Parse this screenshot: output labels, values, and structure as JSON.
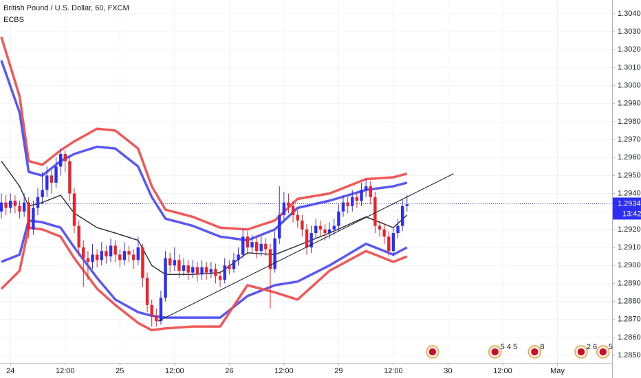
{
  "chart_data": {
    "type": "candlestick",
    "title": "British Pound / U.S. Dollar, 60, FXCM",
    "indicator": "ECBS",
    "up_color": "#2e2ef0",
    "down_color": "#e8242c",
    "candles": [
      [
        1.293,
        1.294,
        1.2926,
        1.2935
      ],
      [
        1.2935,
        1.2939,
        1.2928,
        1.2932
      ],
      [
        1.2932,
        1.294,
        1.2929,
        1.2936
      ],
      [
        1.2936,
        1.2939,
        1.2929,
        1.2933
      ],
      [
        1.2933,
        1.2936,
        1.2926,
        1.293
      ],
      [
        1.293,
        1.294,
        1.2927,
        1.2935
      ],
      [
        1.2935,
        1.2938,
        1.2915,
        1.292
      ],
      [
        1.292,
        1.2936,
        1.2917,
        1.2932
      ],
      [
        1.2932,
        1.2943,
        1.2928,
        1.2938
      ],
      [
        1.2938,
        1.2952,
        1.2934,
        1.2942
      ],
      [
        1.2942,
        1.2955,
        1.2938,
        1.295
      ],
      [
        1.295,
        1.2953,
        1.294,
        1.2946
      ],
      [
        1.2946,
        1.296,
        1.2943,
        1.2955
      ],
      [
        1.2955,
        1.2965,
        1.295,
        1.2962
      ],
      [
        1.2962,
        1.2964,
        1.2952,
        1.2958
      ],
      [
        1.2958,
        1.296,
        1.2936,
        1.294
      ],
      [
        1.294,
        1.2943,
        1.2918,
        1.2922
      ],
      [
        1.2922,
        1.2925,
        1.2905,
        1.291
      ],
      [
        1.291,
        1.2914,
        1.2888,
        1.2904
      ],
      [
        1.2904,
        1.2908,
        1.2892,
        1.2902
      ],
      [
        1.2902,
        1.2912,
        1.2898,
        1.2906
      ],
      [
        1.2906,
        1.2909,
        1.2899,
        1.2903
      ],
      [
        1.2903,
        1.2913,
        1.29,
        1.2908
      ],
      [
        1.2908,
        1.2911,
        1.2901,
        1.2905
      ],
      [
        1.2905,
        1.2915,
        1.2902,
        1.2911
      ],
      [
        1.2911,
        1.2914,
        1.2902,
        1.2906
      ],
      [
        1.2906,
        1.2909,
        1.2899,
        1.2903
      ],
      [
        1.2903,
        1.2913,
        1.29,
        1.2908
      ],
      [
        1.2908,
        1.2911,
        1.2902,
        1.2906
      ],
      [
        1.2906,
        1.2909,
        1.2898,
        1.2903
      ],
      [
        1.2903,
        1.2916,
        1.29,
        1.291
      ],
      [
        1.291,
        1.2912,
        1.2888,
        1.2893
      ],
      [
        1.2893,
        1.2896,
        1.2874,
        1.2878
      ],
      [
        1.2878,
        1.2881,
        1.2866,
        1.2872
      ],
      [
        1.2872,
        1.2876,
        1.2866,
        1.2869
      ],
      [
        1.2869,
        1.2886,
        1.2867,
        1.2882
      ],
      [
        1.2882,
        1.2908,
        1.288,
        1.2904
      ],
      [
        1.2904,
        1.2907,
        1.2896,
        1.29
      ],
      [
        1.29,
        1.291,
        1.2897,
        1.2903
      ],
      [
        1.2903,
        1.2906,
        1.2893,
        1.2897
      ],
      [
        1.2897,
        1.2904,
        1.2894,
        1.29
      ],
      [
        1.29,
        1.2903,
        1.2892,
        1.2896
      ],
      [
        1.2896,
        1.2903,
        1.2893,
        1.2899
      ],
      [
        1.2899,
        1.2902,
        1.2891,
        1.2895
      ],
      [
        1.2895,
        1.2903,
        1.2892,
        1.2899
      ],
      [
        1.2899,
        1.2902,
        1.2892,
        1.2896
      ],
      [
        1.2896,
        1.2902,
        1.2893,
        1.2898
      ],
      [
        1.2898,
        1.2901,
        1.289,
        1.2894
      ],
      [
        1.2894,
        1.2897,
        1.2888,
        1.2892
      ],
      [
        1.2892,
        1.2904,
        1.289,
        1.29
      ],
      [
        1.29,
        1.2903,
        1.2895,
        1.2898
      ],
      [
        1.2898,
        1.2907,
        1.2896,
        1.2903
      ],
      [
        1.2903,
        1.291,
        1.29,
        1.2906
      ],
      [
        1.2906,
        1.292,
        1.2904,
        1.2916
      ],
      [
        1.2916,
        1.2919,
        1.2906,
        1.291
      ],
      [
        1.291,
        1.2917,
        1.2907,
        1.2913
      ],
      [
        1.2913,
        1.2916,
        1.2904,
        1.2908
      ],
      [
        1.2908,
        1.2916,
        1.2905,
        1.2912
      ],
      [
        1.2912,
        1.2915,
        1.2905,
        1.2909
      ],
      [
        1.2909,
        1.2912,
        1.2876,
        1.2898
      ],
      [
        1.2898,
        1.2919,
        1.2896,
        1.2915
      ],
      [
        1.2915,
        1.2944,
        1.2912,
        1.2928
      ],
      [
        1.2928,
        1.2941,
        1.2925,
        1.2935
      ],
      [
        1.2935,
        1.294,
        1.2929,
        1.2933
      ],
      [
        1.2933,
        1.2936,
        1.2924,
        1.2928
      ],
      [
        1.2928,
        1.2931,
        1.2921,
        1.2925
      ],
      [
        1.2925,
        1.2928,
        1.2916,
        1.292
      ],
      [
        1.292,
        1.2923,
        1.2906,
        1.291
      ],
      [
        1.291,
        1.2922,
        1.2907,
        1.2918
      ],
      [
        1.2918,
        1.2926,
        1.2915,
        1.2922
      ],
      [
        1.2922,
        1.2925,
        1.2916,
        1.292
      ],
      [
        1.292,
        1.2923,
        1.2914,
        1.2918
      ],
      [
        1.2918,
        1.2924,
        1.2915,
        1.292
      ],
      [
        1.292,
        1.2926,
        1.2917,
        1.2922
      ],
      [
        1.2922,
        1.2934,
        1.2919,
        1.293
      ],
      [
        1.293,
        1.2939,
        1.2927,
        1.2935
      ],
      [
        1.2935,
        1.2938,
        1.2929,
        1.2933
      ],
      [
        1.2933,
        1.2942,
        1.293,
        1.2938
      ],
      [
        1.2938,
        1.2941,
        1.2932,
        1.2936
      ],
      [
        1.2936,
        1.2946,
        1.2933,
        1.2942
      ],
      [
        1.2942,
        1.2948,
        1.2938,
        1.2944
      ],
      [
        1.2944,
        1.2947,
        1.2934,
        1.2938
      ],
      [
        1.2938,
        1.2941,
        1.2918,
        1.2922
      ],
      [
        1.2922,
        1.2925,
        1.2916,
        1.292
      ],
      [
        1.292,
        1.2923,
        1.2912,
        1.2916
      ],
      [
        1.2916,
        1.2919,
        1.2905,
        1.2908
      ],
      [
        1.2908,
        1.2921,
        1.2905,
        1.2918
      ],
      [
        1.2918,
        1.2926,
        1.2915,
        1.2922
      ],
      [
        1.2922,
        1.2937,
        1.2919,
        1.2933
      ],
      [
        1.2933,
        1.2939,
        1.293,
        1.2934
      ]
    ],
    "overlay_x": [
      0,
      4,
      6,
      9,
      13,
      16,
      21,
      25,
      30,
      33,
      36,
      42,
      48,
      54,
      60,
      65,
      72,
      80,
      86,
      89
    ],
    "overlays": [
      {
        "color": "#f05050",
        "values": [
          1.3027,
          1.2994,
          1.2958,
          1.2956,
          1.2964,
          1.2969,
          1.2976,
          1.2975,
          1.2965,
          1.2944,
          1.2931,
          1.2927,
          1.2921,
          1.292,
          1.2925,
          1.2937,
          1.294,
          1.2948,
          1.2949,
          1.2951
        ]
      },
      {
        "color": "#5050f0",
        "values": [
          1.3014,
          1.2985,
          1.2952,
          1.295,
          1.2958,
          1.2962,
          1.2966,
          1.2965,
          1.2955,
          1.2938,
          1.2926,
          1.2922,
          1.2916,
          1.2914,
          1.292,
          1.2932,
          1.2936,
          1.2942,
          1.2944,
          1.2946
        ]
      },
      {
        "color": "#333333",
        "values": [
          1.2958,
          1.2944,
          1.2933,
          1.2935,
          1.2939,
          1.2929,
          1.2921,
          1.2918,
          1.2914,
          1.29,
          1.2895,
          1.2895,
          1.2896,
          1.2907,
          1.2906,
          1.2911,
          1.2918,
          1.2927,
          1.2921,
          1.2928
        ]
      },
      {
        "color": "#5050f0",
        "values": [
          1.2902,
          1.2906,
          1.2925,
          1.2924,
          1.2921,
          1.291,
          1.2893,
          1.2881,
          1.2874,
          1.2872,
          1.2871,
          1.2871,
          1.2871,
          1.2883,
          1.2889,
          1.2891,
          1.29,
          1.2912,
          1.2906,
          1.291
        ]
      },
      {
        "color": "#f05050",
        "values": [
          1.2887,
          1.2897,
          1.2921,
          1.292,
          1.2916,
          1.2904,
          1.2887,
          1.2878,
          1.2868,
          1.2864,
          1.2865,
          1.2866,
          1.2866,
          1.2889,
          1.2885,
          1.2881,
          1.2897,
          1.2908,
          1.2902,
          1.2905
        ]
      }
    ],
    "trendline": {
      "x": [
        34.4,
        99.2
      ],
      "y": [
        1.2869,
        1.2951
      ]
    },
    "last_price": 1.29343,
    "last_price_color": "#2e2ef0",
    "countdown": "13:42",
    "events": [
      {
        "x": 94.6
      },
      {
        "x": 108.3,
        "label": "5 4 5"
      },
      {
        "x": 117,
        "label": "8"
      },
      {
        "x": 127.2,
        "label": "2 6"
      },
      {
        "x": 132,
        "label": "5"
      }
    ],
    "xlim": [
      -0.3,
      134
    ],
    "xticks": [
      {
        "value": 2,
        "label": "24"
      },
      {
        "value": 14,
        "label": "12:00"
      },
      {
        "value": 26,
        "label": "25"
      },
      {
        "value": 38,
        "label": "12:00"
      },
      {
        "value": 50,
        "label": "26"
      },
      {
        "value": 62,
        "label": "12:00"
      },
      {
        "value": 74,
        "label": "29"
      },
      {
        "value": 86,
        "label": "12:00"
      },
      {
        "value": 98,
        "label": "30"
      },
      {
        "value": 110,
        "label": "12:00"
      },
      {
        "value": 122,
        "label": "May"
      }
    ],
    "ylim": [
      1.28458,
      1.30476
    ],
    "yticks": [
      {
        "value": 1.285,
        "label": "1.28500"
      },
      {
        "value": 1.286,
        "label": "1.28600"
      },
      {
        "value": 1.287,
        "label": "1.28700"
      },
      {
        "value": 1.288,
        "label": "1.28800"
      },
      {
        "value": 1.289,
        "label": "1.28900"
      },
      {
        "value": 1.29,
        "label": "1.29000"
      },
      {
        "value": 1.291,
        "label": "1.29100"
      },
      {
        "value": 1.292,
        "label": "1.29200"
      },
      {
        "value": 1.293,
        "label": "1.29300"
      },
      {
        "value": 1.294,
        "label": "1.29400"
      },
      {
        "value": 1.295,
        "label": "1.29500"
      },
      {
        "value": 1.296,
        "label": "1.29600"
      },
      {
        "value": 1.297,
        "label": "1.29700"
      },
      {
        "value": 1.298,
        "label": "1.29800"
      },
      {
        "value": 1.299,
        "label": "1.29900"
      },
      {
        "value": 1.3,
        "label": "1.30000"
      },
      {
        "value": 1.301,
        "label": "1.30100"
      },
      {
        "value": 1.302,
        "label": "1.30200"
      },
      {
        "value": 1.303,
        "label": "1.30300"
      },
      {
        "value": 1.304,
        "label": "1.30400"
      }
    ],
    "grid": true
  }
}
